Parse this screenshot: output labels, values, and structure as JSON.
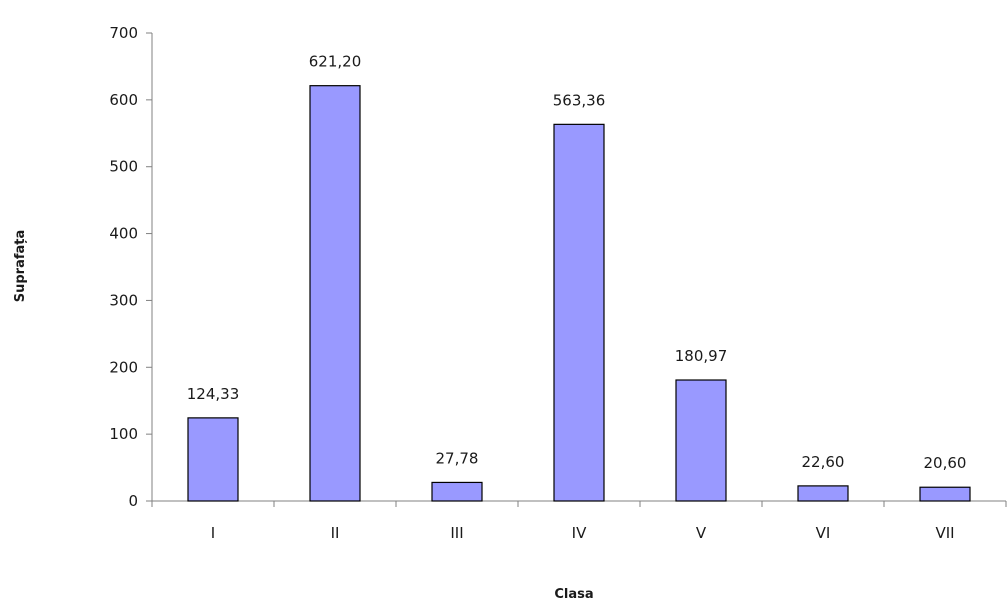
{
  "chart_data": {
    "type": "bar",
    "title": "",
    "xlabel": "Clasa",
    "ylabel": "Suprafața",
    "categories": [
      "I",
      "II",
      "III",
      "IV",
      "V",
      "VI",
      "VII"
    ],
    "values": [
      124.33,
      621.2,
      27.78,
      563.36,
      180.97,
      22.6,
      20.6
    ],
    "data_labels": [
      "124,33",
      "621,20",
      "27,78",
      "563,36",
      "180,97",
      "22,60",
      "20,60"
    ],
    "ylim": [
      0,
      700
    ],
    "yticks": [
      0,
      100,
      200,
      300,
      400,
      500,
      600,
      700
    ],
    "ytick_labels": [
      "0",
      "100",
      "200",
      "300",
      "400",
      "500",
      "600",
      "700"
    ],
    "grid": false,
    "legend": "none",
    "colors": {
      "bar_fill": "#9999ff",
      "bar_stroke": "#000000",
      "axis": "#808080"
    }
  }
}
